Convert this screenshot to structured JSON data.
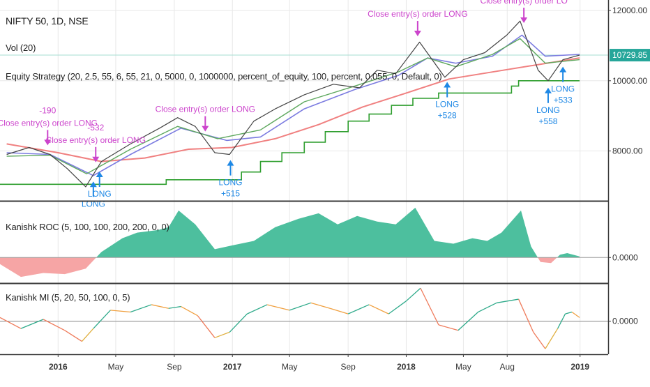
{
  "colors": {
    "background": "#ffffff",
    "divider": "#3a3a3a",
    "axis_text": "#333333",
    "grid": "#e8e8e8",
    "price_tag_bg": "#26a69a",
    "annotation_close": "#cc44cc",
    "annotation_long": "#1e88e5",
    "roc_positive": "#4dbf9e",
    "roc_negative": "#f6a5a5",
    "stop_line": "#2e9e2e",
    "long_ma": "#f08080",
    "mid_ma": "#7b7be0",
    "fast_ma": "#5ea85e",
    "zero_line": "#9e9e9e",
    "price_level_line": "#a6dcd2"
  },
  "panels": {
    "main": {
      "title_label": "NIFTY 50, 1D, NSE",
      "volume_label": "Vol (20)",
      "strategy_label": "Equity Strategy (20, 2.5, 55, 6, 55, 21, 0, 5000, 0, 1000000, percent_of_equity, 100, percent, 0.055, 0, Default, 0)",
      "price_tag": "10729.85",
      "price_ticks": [
        "12000.00",
        "10000.00",
        "8000.00"
      ]
    },
    "roc": {
      "label": "Kanishk ROC (5, 100, 100, 200, 200, 0, 0)",
      "zero_tick": "0.0000"
    },
    "mi": {
      "label": "Kanishk MI (5, 20, 50, 100, 0, 5)",
      "zero_tick": "0.0000"
    }
  },
  "annotations": [
    {
      "kind": "close",
      "text": "Close entry(s) order LONG",
      "date": "2015-12-10"
    },
    {
      "kind": "pnl",
      "text": "-190",
      "date": "2015-12-10"
    },
    {
      "kind": "close",
      "text": "Close entry(s) order LONG",
      "date": "2016-03-20"
    },
    {
      "kind": "pnl",
      "text": "-532",
      "date": "2016-03-20"
    },
    {
      "kind": "long",
      "text": "LONG",
      "date": "2016-03-15"
    },
    {
      "kind": "long",
      "text": "LONG",
      "date": "2016-03-28"
    },
    {
      "kind": "close",
      "text": "Close entry(s) order LONG",
      "date": "2016-11-05"
    },
    {
      "kind": "long",
      "text": "LONG",
      "date": "2016-12-28"
    },
    {
      "kind": "pnl",
      "text": "+515",
      "date": "2016-12-28"
    },
    {
      "kind": "close",
      "text": "Close entry(s) order LONG",
      "date": "2018-01-25"
    },
    {
      "kind": "long",
      "text": "LONG",
      "date": "2018-03-28"
    },
    {
      "kind": "pnl",
      "text": "+528",
      "date": "2018-03-28"
    },
    {
      "kind": "close",
      "text": "Close entry(s) order LO",
      "date": "2018-09-05"
    },
    {
      "kind": "long",
      "text": "LONG",
      "date": "2018-10-26"
    },
    {
      "kind": "pnl",
      "text": "+558",
      "date": "2018-10-26"
    },
    {
      "kind": "long",
      "text": "LONG",
      "date": "2018-11-26"
    },
    {
      "kind": "pnl",
      "text": "+533",
      "date": "2018-11-26"
    }
  ],
  "chart_data": [
    {
      "type": "line",
      "panel": "main",
      "ylim": [
        6600,
        12300
      ],
      "y_ticks": [
        8000,
        10000,
        12000
      ],
      "x_range": [
        "2015-09-01",
        "2019-03-01"
      ],
      "x_tick_labels": [
        "2016",
        "May",
        "Sep",
        "2017",
        "May",
        "Sep",
        "2018",
        "May",
        "Aug",
        "2019"
      ],
      "x_tick_dates": [
        "2016-01-01",
        "2016-05-01",
        "2016-09-01",
        "2017-01-01",
        "2017-05-01",
        "2017-09-01",
        "2018-01-01",
        "2018-05-01",
        "2018-08-01",
        "2019-01-01"
      ],
      "last_price": 10729.85,
      "series": [
        {
          "role": "price",
          "x": [
            "2015-09-15",
            "2015-11-01",
            "2015-12-15",
            "2016-01-20",
            "2016-02-28",
            "2016-04-01",
            "2016-06-01",
            "2016-08-01",
            "2016-09-08",
            "2016-10-15",
            "2016-11-25",
            "2016-12-26",
            "2017-02-15",
            "2017-04-01",
            "2017-06-01",
            "2017-08-01",
            "2017-09-25",
            "2017-11-01",
            "2017-12-10",
            "2018-01-29",
            "2018-03-23",
            "2018-05-01",
            "2018-06-15",
            "2018-07-31",
            "2018-08-28",
            "2018-10-05",
            "2018-10-26",
            "2018-11-26",
            "2018-12-31"
          ],
          "values": [
            7900,
            8100,
            7900,
            7500,
            6980,
            7700,
            8200,
            8650,
            8950,
            8700,
            7950,
            7900,
            8850,
            9200,
            9600,
            9900,
            9800,
            10300,
            10200,
            11100,
            10100,
            10600,
            10800,
            11300,
            11700,
            10300,
            10000,
            10600,
            10730
          ]
        },
        {
          "role": "moving_average_fast",
          "x": [
            "2015-09-15",
            "2015-12-15",
            "2016-03-01",
            "2016-06-01",
            "2016-09-08",
            "2016-12-01",
            "2017-03-01",
            "2017-06-01",
            "2017-09-15",
            "2017-12-15",
            "2018-02-15",
            "2018-04-15",
            "2018-07-01",
            "2018-08-28",
            "2018-10-20",
            "2018-12-31"
          ],
          "values": [
            7850,
            7880,
            7350,
            8050,
            8700,
            8350,
            8600,
            9400,
            9850,
            10250,
            10650,
            10400,
            10750,
            11200,
            10500,
            10600
          ]
        },
        {
          "role": "moving_average_mid",
          "x": [
            "2015-09-15",
            "2015-12-15",
            "2016-03-15",
            "2016-06-01",
            "2016-09-15",
            "2016-12-20",
            "2017-03-01",
            "2017-06-01",
            "2017-09-15",
            "2017-12-15",
            "2018-02-15",
            "2018-04-15",
            "2018-07-01",
            "2018-09-01",
            "2018-10-20",
            "2018-12-31"
          ],
          "values": [
            7950,
            7900,
            7300,
            7900,
            8650,
            8300,
            8400,
            9200,
            9750,
            10150,
            10650,
            10500,
            10700,
            11300,
            10700,
            10750
          ]
        },
        {
          "role": "moving_average_long",
          "x": [
            "2015-09-15",
            "2016-01-01",
            "2016-04-01",
            "2016-07-01",
            "2016-10-01",
            "2016-12-31",
            "2017-04-01",
            "2017-07-01",
            "2017-10-01",
            "2018-01-01",
            "2018-04-01",
            "2018-07-01",
            "2018-10-01",
            "2018-12-31"
          ],
          "values": [
            8200,
            7950,
            7700,
            7800,
            8050,
            8100,
            8350,
            8750,
            9250,
            9650,
            10050,
            10250,
            10450,
            10650
          ]
        },
        {
          "role": "trailing_stop",
          "step_x": [
            "2015-09-01",
            "2016-03-10",
            "2016-08-15",
            "2016-12-20",
            "2017-01-20",
            "2017-03-01",
            "2017-04-15",
            "2017-06-01",
            "2017-07-15",
            "2017-09-01",
            "2017-10-15",
            "2017-12-01",
            "2018-01-15",
            "2018-03-10",
            "2018-06-10",
            "2018-08-10",
            "2018-08-25",
            "2018-12-31"
          ],
          "values": [
            7050,
            7050,
            7180,
            7180,
            7400,
            7700,
            7950,
            8250,
            8550,
            8850,
            9050,
            9300,
            9500,
            9650,
            9650,
            9850,
            10000,
            10000
          ]
        }
      ]
    },
    {
      "type": "area",
      "panel": "roc",
      "ylim": [
        -0.45,
        1.0
      ],
      "zero": 0,
      "x": [
        "2015-09-01",
        "2015-10-15",
        "2015-12-01",
        "2016-01-15",
        "2016-02-28",
        "2016-04-01",
        "2016-05-15",
        "2016-06-15",
        "2016-07-30",
        "2016-08-20",
        "2016-09-10",
        "2016-10-15",
        "2016-11-25",
        "2017-01-01",
        "2017-02-15",
        "2017-04-01",
        "2017-05-20",
        "2017-07-01",
        "2017-08-10",
        "2017-09-20",
        "2017-11-01",
        "2017-12-10",
        "2018-01-20",
        "2018-03-01",
        "2018-04-10",
        "2018-05-20",
        "2018-06-20",
        "2018-07-20",
        "2018-08-30",
        "2018-09-20",
        "2018-10-10",
        "2018-11-01",
        "2018-11-20",
        "2018-12-05",
        "2018-12-31"
      ],
      "values": [
        -0.12,
        -0.35,
        -0.28,
        -0.3,
        -0.2,
        0.1,
        0.35,
        0.45,
        0.5,
        0.55,
        0.85,
        0.6,
        0.15,
        0.22,
        0.3,
        0.55,
        0.7,
        0.8,
        0.6,
        0.75,
        0.65,
        0.6,
        0.9,
        0.3,
        0.25,
        0.35,
        0.3,
        0.45,
        0.85,
        0.2,
        -0.08,
        -0.1,
        0.05,
        0.08,
        0.02
      ]
    },
    {
      "type": "line",
      "panel": "mi",
      "ylim": [
        -0.9,
        1.0
      ],
      "zero": 0,
      "x": [
        "2015-09-01",
        "2015-10-15",
        "2015-12-01",
        "2016-01-15",
        "2016-02-20",
        "2016-03-15",
        "2016-04-20",
        "2016-06-01",
        "2016-07-15",
        "2016-08-20",
        "2016-09-15",
        "2016-10-20",
        "2016-11-25",
        "2016-12-26",
        "2017-02-01",
        "2017-03-15",
        "2017-05-01",
        "2017-06-15",
        "2017-07-25",
        "2017-09-01",
        "2017-10-15",
        "2017-11-25",
        "2018-01-01",
        "2018-01-31",
        "2018-03-10",
        "2018-04-20",
        "2018-06-01",
        "2018-07-10",
        "2018-08-25",
        "2018-09-25",
        "2018-10-20",
        "2018-11-15",
        "2018-12-01",
        "2018-12-15",
        "2018-12-31"
      ],
      "values": [
        0.1,
        -0.2,
        0.05,
        -0.25,
        -0.55,
        -0.2,
        0.3,
        0.25,
        0.45,
        0.35,
        0.4,
        0.15,
        -0.45,
        -0.3,
        0.2,
        0.45,
        0.3,
        0.5,
        0.35,
        0.2,
        0.45,
        0.2,
        0.55,
        0.9,
        -0.1,
        -0.25,
        0.25,
        0.5,
        0.6,
        -0.3,
        -0.75,
        -0.2,
        0.2,
        0.25,
        0.1
      ]
    }
  ]
}
